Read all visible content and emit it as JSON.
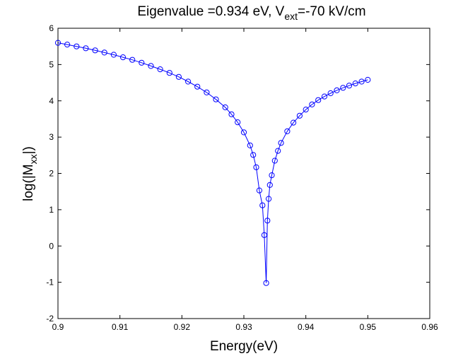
{
  "chart_data": {
    "type": "scatter",
    "title": {
      "main": "Eigenvalue =0.934 eV, V",
      "main_sub": "ext",
      "tail": "=-70 kV/cm"
    },
    "xlabel": "Energy(eV)",
    "ylabel": {
      "prefix": "log(|M",
      "sub": "xx",
      "suffix": "|)"
    },
    "xlim": [
      0.9,
      0.96
    ],
    "ylim": [
      -2,
      6
    ],
    "xticks": [
      0.9,
      0.91,
      0.92,
      0.93,
      0.94,
      0.95,
      0.96
    ],
    "xtick_labels": [
      "0.9",
      "0.91",
      "0.92",
      "0.93",
      "0.94",
      "0.95",
      "0.96"
    ],
    "yticks": [
      -2,
      -1,
      0,
      1,
      2,
      3,
      4,
      5,
      6
    ],
    "ytick_labels": [
      "-2",
      "-1",
      "0",
      "1",
      "2",
      "3",
      "4",
      "5",
      "6"
    ],
    "grid": false,
    "series": [
      {
        "color": "#0000ff",
        "marker": "circle",
        "line": true,
        "x": [
          0.9,
          0.9015,
          0.903,
          0.9045,
          0.906,
          0.9075,
          0.909,
          0.9105,
          0.912,
          0.9135,
          0.915,
          0.9165,
          0.918,
          0.9195,
          0.921,
          0.9225,
          0.924,
          0.9255,
          0.927,
          0.928,
          0.929,
          0.93,
          0.931,
          0.9315,
          0.932,
          0.9325,
          0.933,
          0.9333,
          0.9336,
          0.9338,
          0.934,
          0.9342,
          0.9345,
          0.935,
          0.9355,
          0.936,
          0.937,
          0.938,
          0.939,
          0.94,
          0.941,
          0.942,
          0.943,
          0.944,
          0.945,
          0.946,
          0.947,
          0.948,
          0.949,
          0.95
        ],
        "y": [
          5.6,
          5.55,
          5.5,
          5.45,
          5.39,
          5.33,
          5.27,
          5.2,
          5.13,
          5.05,
          4.96,
          4.87,
          4.77,
          4.66,
          4.53,
          4.39,
          4.23,
          4.04,
          3.82,
          3.63,
          3.41,
          3.13,
          2.77,
          2.51,
          2.17,
          1.53,
          1.12,
          0.3,
          -1.02,
          0.7,
          1.3,
          1.68,
          1.95,
          2.35,
          2.62,
          2.84,
          3.16,
          3.4,
          3.59,
          3.76,
          3.9,
          4.02,
          4.12,
          4.21,
          4.29,
          4.36,
          4.42,
          4.48,
          4.53,
          4.58
        ]
      }
    ]
  }
}
